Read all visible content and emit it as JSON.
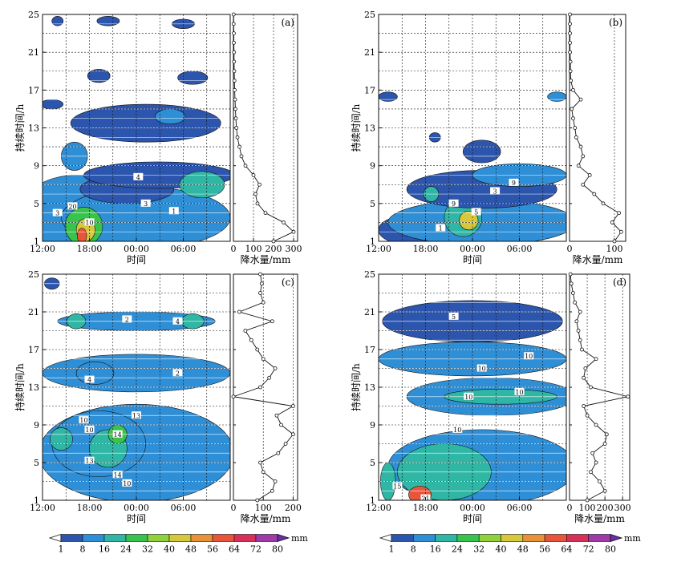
{
  "chart_data": [
    {
      "type": "heatmap",
      "panel": "(a)",
      "xlabel": "时间",
      "ylabel": "持续时间/h",
      "x_ticks": [
        "12:00",
        "18:00",
        "00:00",
        "06:00"
      ],
      "y_ticks": [
        "1",
        "5",
        "9",
        "13",
        "17",
        "21",
        "25"
      ],
      "ylim": [
        1,
        25
      ],
      "side_xlabel": "降水量/mm",
      "side_ticks": [
        "0",
        "100",
        "200",
        "300"
      ],
      "side_xlim": [
        0,
        320
      ],
      "side_series": [
        {
          "d": 1,
          "v": 200
        },
        {
          "d": 2,
          "v": 300
        },
        {
          "d": 3,
          "v": 250
        },
        {
          "d": 4,
          "v": 160
        },
        {
          "d": 5,
          "v": 120
        },
        {
          "d": 6,
          "v": 110
        },
        {
          "d": 7,
          "v": 130
        },
        {
          "d": 8,
          "v": 100
        },
        {
          "d": 9,
          "v": 60
        },
        {
          "d": 10,
          "v": 40
        },
        {
          "d": 11,
          "v": 30
        },
        {
          "d": 12,
          "v": 20
        },
        {
          "d": 13,
          "v": 15
        },
        {
          "d": 14,
          "v": 12
        },
        {
          "d": 15,
          "v": 10
        },
        {
          "d": 16,
          "v": 8
        },
        {
          "d": 17,
          "v": 6
        },
        {
          "d": 18,
          "v": 5
        },
        {
          "d": 19,
          "v": 4
        },
        {
          "d": 20,
          "v": 3
        },
        {
          "d": 21,
          "v": 3
        },
        {
          "d": 22,
          "v": 2
        },
        {
          "d": 23,
          "v": 2
        },
        {
          "d": 24,
          "v": 1
        },
        {
          "d": 25,
          "v": 1
        }
      ],
      "blobs": [
        {
          "x": 0.03,
          "y": 3.0,
          "rx": 0.05,
          "ry": 2.8,
          "v": 8
        },
        {
          "x": 0.18,
          "y": 4.0,
          "rx": 0.3,
          "ry": 4.0,
          "v": 8
        },
        {
          "x": 0.55,
          "y": 3.5,
          "rx": 0.45,
          "ry": 3.2,
          "v": 8
        },
        {
          "x": 0.22,
          "y": 2.6,
          "rx": 0.1,
          "ry": 2.0,
          "v": 24
        },
        {
          "x": 0.23,
          "y": 2.2,
          "rx": 0.05,
          "ry": 1.2,
          "v": 45
        },
        {
          "x": 0.21,
          "y": 1.6,
          "rx": 0.025,
          "ry": 0.8,
          "v": 62
        },
        {
          "x": 0.45,
          "y": 6.5,
          "rx": 0.25,
          "ry": 1.5,
          "v": 1
        },
        {
          "x": 0.62,
          "y": 8.0,
          "rx": 0.4,
          "ry": 1.4,
          "v": 1
        },
        {
          "x": 0.85,
          "y": 7.0,
          "rx": 0.12,
          "ry": 1.4,
          "v": 16
        },
        {
          "x": 0.17,
          "y": 10.0,
          "rx": 0.07,
          "ry": 1.5,
          "v": 10
        },
        {
          "x": 0.55,
          "y": 13.5,
          "rx": 0.4,
          "ry": 2.0,
          "v": 1
        },
        {
          "x": 0.68,
          "y": 14.2,
          "rx": 0.08,
          "ry": 0.8,
          "v": 8
        },
        {
          "x": 0.3,
          "y": 18.5,
          "rx": 0.06,
          "ry": 0.7,
          "v": 1
        },
        {
          "x": 0.8,
          "y": 18.3,
          "rx": 0.08,
          "ry": 0.7,
          "v": 1
        },
        {
          "x": 0.05,
          "y": 15.5,
          "rx": 0.06,
          "ry": 0.5,
          "v": 1
        },
        {
          "x": 0.35,
          "y": 24.3,
          "rx": 0.06,
          "ry": 0.5,
          "v": 1
        },
        {
          "x": 0.08,
          "y": 24.3,
          "rx": 0.03,
          "ry": 0.5,
          "v": 1
        },
        {
          "x": 0.75,
          "y": 24.0,
          "rx": 0.06,
          "ry": 0.5,
          "v": 1
        }
      ],
      "labels": [
        {
          "x": 0.16,
          "y": 4.7,
          "t": "20"
        },
        {
          "x": 0.25,
          "y": 3.0,
          "t": "10"
        },
        {
          "x": 0.55,
          "y": 5.0,
          "t": "3"
        },
        {
          "x": 0.7,
          "y": 4.2,
          "t": "1"
        },
        {
          "x": 0.08,
          "y": 4.0,
          "t": "3"
        },
        {
          "x": 0.51,
          "y": 7.8,
          "t": "4"
        }
      ]
    },
    {
      "type": "heatmap",
      "panel": "(b)",
      "xlabel": "时间",
      "ylabel": "持续时间/h",
      "x_ticks": [
        "12:00",
        "18:00",
        "00:00",
        "06:00"
      ],
      "y_ticks": [
        "1",
        "5",
        "9",
        "13",
        "17",
        "21",
        "25"
      ],
      "ylim": [
        1,
        25
      ],
      "side_xlabel": "降水量/mm",
      "side_ticks": [
        "0",
        "100"
      ],
      "side_xlim": [
        0,
        125
      ],
      "side_series": [
        {
          "d": 1,
          "v": 100
        },
        {
          "d": 2,
          "v": 115
        },
        {
          "d": 3,
          "v": 95
        },
        {
          "d": 4,
          "v": 110
        },
        {
          "d": 5,
          "v": 75
        },
        {
          "d": 6,
          "v": 55
        },
        {
          "d": 7,
          "v": 30
        },
        {
          "d": 8,
          "v": 45
        },
        {
          "d": 9,
          "v": 20
        },
        {
          "d": 10,
          "v": 30
        },
        {
          "d": 11,
          "v": 25
        },
        {
          "d": 12,
          "v": 15
        },
        {
          "d": 13,
          "v": 12
        },
        {
          "d": 14,
          "v": 8
        },
        {
          "d": 15,
          "v": 5
        },
        {
          "d": 16,
          "v": 25
        },
        {
          "d": 17,
          "v": 8
        },
        {
          "d": 18,
          "v": 3
        },
        {
          "d": 19,
          "v": 2
        },
        {
          "d": 20,
          "v": 2
        },
        {
          "d": 21,
          "v": 1
        },
        {
          "d": 22,
          "v": 1
        },
        {
          "d": 23,
          "v": 1
        },
        {
          "d": 24,
          "v": 1
        },
        {
          "d": 25,
          "v": 1
        }
      ],
      "blobs": [
        {
          "x": 0.15,
          "y": 2.2,
          "rx": 0.15,
          "ry": 1.5,
          "v": 1
        },
        {
          "x": 0.55,
          "y": 3.0,
          "rx": 0.5,
          "ry": 2.4,
          "v": 8
        },
        {
          "x": 0.45,
          "y": 3.5,
          "rx": 0.1,
          "ry": 2.0,
          "v": 22
        },
        {
          "x": 0.48,
          "y": 3.2,
          "rx": 0.05,
          "ry": 1.0,
          "v": 40
        },
        {
          "x": 0.55,
          "y": 6.5,
          "rx": 0.4,
          "ry": 2.0,
          "v": 1
        },
        {
          "x": 0.75,
          "y": 8.0,
          "rx": 0.25,
          "ry": 1.2,
          "v": 8
        },
        {
          "x": 0.28,
          "y": 6.0,
          "rx": 0.04,
          "ry": 0.8,
          "v": 20
        },
        {
          "x": 0.55,
          "y": 10.5,
          "rx": 0.1,
          "ry": 1.2,
          "v": 1
        },
        {
          "x": 0.05,
          "y": 16.3,
          "rx": 0.05,
          "ry": 0.5,
          "v": 1
        },
        {
          "x": 0.95,
          "y": 16.3,
          "rx": 0.05,
          "ry": 0.5,
          "v": 8
        },
        {
          "x": 0.3,
          "y": 12.0,
          "rx": 0.03,
          "ry": 0.5,
          "v": 1
        }
      ],
      "labels": [
        {
          "x": 0.4,
          "y": 5.0,
          "t": "9"
        },
        {
          "x": 0.52,
          "y": 4.1,
          "t": "5"
        },
        {
          "x": 0.33,
          "y": 2.4,
          "t": "1"
        },
        {
          "x": 0.62,
          "y": 6.3,
          "t": "3"
        },
        {
          "x": 0.72,
          "y": 7.2,
          "t": "9"
        }
      ]
    },
    {
      "type": "heatmap",
      "panel": "(c)",
      "xlabel": "时间",
      "ylabel": "持续时间/h",
      "x_ticks": [
        "12:00",
        "18:00",
        "00:00",
        "06:00"
      ],
      "y_ticks": [
        "1",
        "5",
        "9",
        "13",
        "17",
        "21",
        "25"
      ],
      "ylim": [
        1,
        25
      ],
      "side_xlabel": "降水量/mm",
      "side_ticks": [
        "0",
        "100",
        "200"
      ],
      "side_xlim": [
        0,
        215
      ],
      "side_series": [
        {
          "d": 1,
          "v": 80
        },
        {
          "d": 2,
          "v": 130
        },
        {
          "d": 3,
          "v": 140
        },
        {
          "d": 4,
          "v": 100
        },
        {
          "d": 5,
          "v": 90
        },
        {
          "d": 6,
          "v": 150
        },
        {
          "d": 7,
          "v": 175
        },
        {
          "d": 8,
          "v": 200
        },
        {
          "d": 9,
          "v": 160
        },
        {
          "d": 10,
          "v": 145
        },
        {
          "d": 11,
          "v": 200
        },
        {
          "d": 12,
          "v": 0
        },
        {
          "d": 13,
          "v": 90
        },
        {
          "d": 14,
          "v": 120
        },
        {
          "d": 15,
          "v": 140
        },
        {
          "d": 16,
          "v": 100
        },
        {
          "d": 17,
          "v": 80
        },
        {
          "d": 18,
          "v": 60
        },
        {
          "d": 19,
          "v": 40
        },
        {
          "d": 20,
          "v": 130
        },
        {
          "d": 21,
          "v": 20
        },
        {
          "d": 22,
          "v": 100
        },
        {
          "d": 23,
          "v": 90
        },
        {
          "d": 24,
          "v": 95
        },
        {
          "d": 25,
          "v": 90
        }
      ],
      "blobs": [
        {
          "x": 0.5,
          "y": 6.0,
          "rx": 0.52,
          "ry": 5.2,
          "v": 8
        },
        {
          "x": 0.3,
          "y": 7.0,
          "rx": 0.25,
          "ry": 3.5,
          "v": 12
        },
        {
          "x": 0.35,
          "y": 6.5,
          "rx": 0.1,
          "ry": 2.0,
          "v": 18
        },
        {
          "x": 0.4,
          "y": 8.0,
          "rx": 0.05,
          "ry": 1.0,
          "v": 28
        },
        {
          "x": 0.1,
          "y": 7.5,
          "rx": 0.06,
          "ry": 1.2,
          "v": 16
        },
        {
          "x": 0.5,
          "y": 14.5,
          "rx": 0.5,
          "ry": 2.0,
          "v": 8
        },
        {
          "x": 0.28,
          "y": 14.5,
          "rx": 0.1,
          "ry": 1.2,
          "v": 14
        },
        {
          "x": 0.5,
          "y": 20.0,
          "rx": 0.42,
          "ry": 1.0,
          "v": 8
        },
        {
          "x": 0.18,
          "y": 20.0,
          "rx": 0.05,
          "ry": 0.8,
          "v": 22
        },
        {
          "x": 0.8,
          "y": 20.0,
          "rx": 0.06,
          "ry": 0.8,
          "v": 18
        },
        {
          "x": 0.05,
          "y": 24.0,
          "rx": 0.04,
          "ry": 0.6,
          "v": 1
        }
      ],
      "labels": [
        {
          "x": 0.22,
          "y": 9.5,
          "t": "10"
        },
        {
          "x": 0.4,
          "y": 8.0,
          "t": "14"
        },
        {
          "x": 0.25,
          "y": 8.5,
          "t": "10"
        },
        {
          "x": 0.25,
          "y": 5.2,
          "t": "13"
        },
        {
          "x": 0.4,
          "y": 3.7,
          "t": "14"
        },
        {
          "x": 0.45,
          "y": 2.8,
          "t": "10"
        },
        {
          "x": 0.5,
          "y": 10.0,
          "t": "13"
        },
        {
          "x": 0.25,
          "y": 13.8,
          "t": "4"
        },
        {
          "x": 0.45,
          "y": 20.2,
          "t": "2"
        },
        {
          "x": 0.72,
          "y": 20.0,
          "t": "4"
        },
        {
          "x": 0.72,
          "y": 14.5,
          "t": "2"
        }
      ]
    },
    {
      "type": "heatmap",
      "panel": "(d)",
      "xlabel": "时间",
      "ylabel": "持续时间/h",
      "x_ticks": [
        "12:00",
        "18:00",
        "00:00",
        "06:00"
      ],
      "y_ticks": [
        "1",
        "5",
        "9",
        "13",
        "17",
        "21",
        "25"
      ],
      "ylim": [
        1,
        25
      ],
      "side_xlabel": "降水量/mm",
      "side_ticks": [
        "0",
        "100",
        "200",
        "300"
      ],
      "side_xlim": [
        0,
        340
      ],
      "side_series": [
        {
          "d": 1,
          "v": 100
        },
        {
          "d": 2,
          "v": 200
        },
        {
          "d": 3,
          "v": 170
        },
        {
          "d": 4,
          "v": 120
        },
        {
          "d": 5,
          "v": 150
        },
        {
          "d": 6,
          "v": 130
        },
        {
          "d": 7,
          "v": 200
        },
        {
          "d": 8,
          "v": 210
        },
        {
          "d": 9,
          "v": 150
        },
        {
          "d": 10,
          "v": 100
        },
        {
          "d": 11,
          "v": 80
        },
        {
          "d": 12,
          "v": 330
        },
        {
          "d": 13,
          "v": 120
        },
        {
          "d": 14,
          "v": 80
        },
        {
          "d": 15,
          "v": 90
        },
        {
          "d": 16,
          "v": 150
        },
        {
          "d": 17,
          "v": 70
        },
        {
          "d": 18,
          "v": 60
        },
        {
          "d": 19,
          "v": 50
        },
        {
          "d": 20,
          "v": 40
        },
        {
          "d": 21,
          "v": 60
        },
        {
          "d": 22,
          "v": 30
        },
        {
          "d": 23,
          "v": 20
        },
        {
          "d": 24,
          "v": 10
        },
        {
          "d": 25,
          "v": 5
        }
      ],
      "blobs": [
        {
          "x": 0.55,
          "y": 4.5,
          "rx": 0.5,
          "ry": 4.0,
          "v": 8
        },
        {
          "x": 0.35,
          "y": 4.0,
          "rx": 0.25,
          "ry": 3.0,
          "v": 16
        },
        {
          "x": 0.05,
          "y": 3.0,
          "rx": 0.04,
          "ry": 2.0,
          "v": 18
        },
        {
          "x": 0.22,
          "y": 1.6,
          "rx": 0.06,
          "ry": 0.9,
          "v": 60
        },
        {
          "x": 0.6,
          "y": 12.0,
          "rx": 0.45,
          "ry": 2.0,
          "v": 8
        },
        {
          "x": 0.65,
          "y": 12.0,
          "rx": 0.3,
          "ry": 0.8,
          "v": 20
        },
        {
          "x": 0.5,
          "y": 16.0,
          "rx": 0.5,
          "ry": 1.8,
          "v": 8
        },
        {
          "x": 0.5,
          "y": 20.0,
          "rx": 0.48,
          "ry": 2.2,
          "v": 1
        }
      ],
      "labels": [
        {
          "x": 0.1,
          "y": 2.5,
          "t": "15"
        },
        {
          "x": 0.25,
          "y": 1.2,
          "t": "21"
        },
        {
          "x": 0.48,
          "y": 12.0,
          "t": "10"
        },
        {
          "x": 0.75,
          "y": 12.5,
          "t": "10"
        },
        {
          "x": 0.42,
          "y": 8.5,
          "t": "10"
        },
        {
          "x": 0.8,
          "y": 16.3,
          "t": "10"
        },
        {
          "x": 0.55,
          "y": 15.0,
          "t": "10"
        },
        {
          "x": 0.4,
          "y": 20.5,
          "t": "5"
        }
      ]
    }
  ],
  "colorbar": {
    "unit": "mm",
    "ticks": [
      1,
      8,
      16,
      24,
      32,
      40,
      48,
      56,
      64,
      72,
      80
    ],
    "colors": [
      "#2c55ad",
      "#2f8fd6",
      "#2fb6a5",
      "#38c34c",
      "#8fd23c",
      "#d6c83a",
      "#e8913a",
      "#e8553a",
      "#d9305a",
      "#a03aa8",
      "#6a2fa8"
    ]
  },
  "colors": {
    "low": "#2c55ad",
    "white": "#ffffff",
    "line": "#111111"
  }
}
